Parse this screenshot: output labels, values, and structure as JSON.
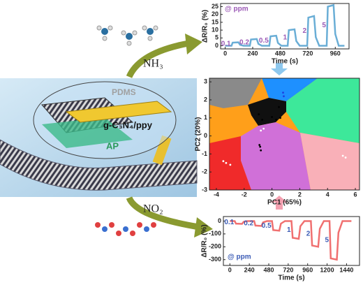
{
  "figure": {
    "pdms": "PDMS",
    "material": "g-C₃N₄/ppy",
    "substrate": "AP",
    "gas_top": "NH₃",
    "gas_bottom": "NO₂"
  },
  "chart_data": [
    {
      "type": "line",
      "xlabel": "Time (s)",
      "ylabel": "ΔR/R₀ (%)",
      "annotation": "@ ppm",
      "pulse_labels": [
        "0.1",
        "0.2",
        "0.5",
        "1",
        "2",
        "5"
      ],
      "label_color": "#9b59b6",
      "x": [
        0,
        55,
        65,
        115,
        130,
        160,
        215,
        225,
        275,
        290,
        320,
        385,
        395,
        445,
        460,
        490,
        545,
        555,
        605,
        620,
        650,
        715,
        725,
        775,
        790,
        820,
        885,
        895,
        945,
        960,
        990,
        1040
      ],
      "series": [
        {
          "color": "#6aaed6",
          "values": [
            0,
            0,
            2,
            2.2,
            0.6,
            0,
            0,
            4,
            4.3,
            1.2,
            0,
            0,
            6,
            6.4,
            1.8,
            0,
            0,
            10,
            10.5,
            3,
            0,
            0,
            18,
            19,
            5.5,
            0,
            0,
            25,
            26,
            7.5,
            0,
            0
          ]
        }
      ],
      "xlim": [
        -40,
        1080
      ],
      "xticks": [
        0,
        240,
        480,
        720,
        960
      ],
      "ylim": [
        -2,
        27
      ],
      "yticks": [
        0,
        5,
        10,
        15,
        20,
        25
      ]
    },
    {
      "type": "scatter",
      "xlabel": "PC1 (65%)",
      "ylabel": "PC2 (20%)",
      "xlim": [
        -4.5,
        6.3
      ],
      "xticks": [
        -4,
        -2,
        0,
        2,
        4,
        6
      ],
      "ylim": [
        -3,
        3.2
      ],
      "yticks": [
        -3,
        -2,
        -1,
        0,
        1,
        2,
        3
      ],
      "series": [
        {
          "color": "#000000",
          "x": [
            -0.7,
            -0.95,
            0,
            0.5,
            0.6,
            0.3,
            -0.9,
            -0.85,
            -0.8
          ],
          "values": [
            0.9,
            1.2,
            1.05,
            1.6,
            1.0,
            0.9,
            -0.5,
            -0.6,
            -0.8
          ]
        },
        {
          "color": "#ffffff",
          "x": [
            -3.3,
            -3.0,
            -3.5,
            -0.6,
            -0.8,
            5.1,
            5.3
          ],
          "values": [
            -1.5,
            -1.6,
            -1.4,
            0.4,
            0.3,
            -1.1,
            -1.2
          ]
        },
        {
          "color": "#2040e0",
          "x": [
            0.8,
            0.85
          ],
          "values": [
            2.4,
            2.2
          ]
        }
      ]
    },
    {
      "type": "line",
      "xlabel": "Time (s)",
      "ylabel": "ΔR/R₀ (%)",
      "annotation": "@ ppm",
      "pulse_labels": [
        "0.1",
        "0.2",
        "0.5",
        "1",
        "2",
        "5"
      ],
      "label_color": "#3b5bb5",
      "x": [
        0,
        60,
        75,
        150,
        170,
        220,
        300,
        315,
        390,
        410,
        460,
        520,
        535,
        610,
        630,
        680,
        760,
        775,
        850,
        870,
        920,
        1000,
        1015,
        1090,
        1110,
        1160,
        1230,
        1245,
        1320,
        1340,
        1390,
        1500
      ],
      "series": [
        {
          "color": "#f07070",
          "values": [
            0,
            0,
            -20,
            -22,
            -6,
            0,
            0,
            -35,
            -38,
            -10,
            0,
            0,
            -70,
            -75,
            -20,
            0,
            0,
            -130,
            -138,
            -40,
            0,
            0,
            -190,
            -200,
            -60,
            0,
            0,
            -290,
            -300,
            -90,
            0,
            0
          ]
        }
      ],
      "xlim": [
        -80,
        1600
      ],
      "xticks": [
        0,
        240,
        480,
        720,
        960,
        1200,
        1440
      ],
      "ylim": [
        -345,
        35
      ],
      "yticks": [
        0,
        -100,
        -200,
        -300
      ]
    }
  ]
}
